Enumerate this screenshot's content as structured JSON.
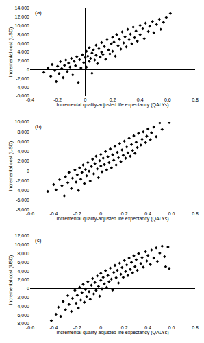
{
  "chart_data": [
    {
      "type": "scatter",
      "title": "(a)",
      "x_label": "Incremental quality-adjusted life expectancy (QALYs)",
      "y_label": "Incremental cost (USD)",
      "color": "#000000",
      "marker": "diamond",
      "grid": false,
      "xlim": [
        -0.4,
        0.8
      ],
      "xticks": [
        -0.4,
        -0.2,
        0,
        0.2,
        0.4,
        0.6,
        0.8
      ],
      "ylim": [
        -6000,
        14000
      ],
      "yticks": [
        {
          "value": -6000,
          "label": "-6,000"
        },
        {
          "value": -4000,
          "label": "-4,000"
        },
        {
          "value": -2000,
          "label": "-2,000"
        },
        0,
        {
          "value": 2000,
          "label": "2,000"
        },
        {
          "value": 4000,
          "label": "4,000"
        },
        {
          "value": 6000,
          "label": "6,000"
        },
        {
          "value": 8000,
          "label": "8,000"
        },
        {
          "value": 10000,
          "label": "10,000"
        },
        {
          "value": 12000,
          "label": "12,000"
        },
        {
          "value": 14000,
          "label": "14,000"
        }
      ],
      "x": [
        -0.3,
        -0.27,
        -0.25,
        -0.24,
        -0.22,
        -0.21,
        -0.2,
        -0.19,
        -0.18,
        -0.17,
        -0.16,
        -0.15,
        -0.14,
        -0.13,
        -0.12,
        -0.11,
        -0.1,
        -0.09,
        -0.08,
        -0.07,
        -0.06,
        -0.05,
        -0.04,
        -0.03,
        -0.02,
        -0.01,
        0.0,
        0.01,
        0.01,
        0.02,
        0.03,
        0.03,
        0.04,
        0.05,
        0.05,
        0.06,
        0.07,
        0.08,
        0.08,
        0.09,
        0.1,
        0.11,
        0.12,
        0.12,
        0.13,
        0.14,
        0.15,
        0.16,
        0.17,
        0.18,
        0.19,
        0.2,
        0.2,
        0.21,
        0.22,
        0.23,
        0.24,
        0.25,
        0.26,
        0.27,
        0.28,
        0.29,
        0.3,
        0.31,
        0.32,
        0.33,
        0.34,
        0.35,
        0.36,
        0.37,
        0.38,
        0.4,
        0.4,
        0.42,
        0.43,
        0.44,
        0.46,
        0.47,
        0.49,
        0.5,
        0.52,
        0.54,
        0.55,
        0.57,
        0.59,
        0.62
      ],
      "values": [
        -600,
        400,
        -1500,
        1200,
        -200,
        -2700,
        800,
        -900,
        1800,
        300,
        -1800,
        1000,
        2200,
        -400,
        1500,
        600,
        2600,
        -1200,
        1900,
        900,
        3000,
        -2900,
        2300,
        400,
        3400,
        1600,
        2800,
        4200,
        600,
        3100,
        1900,
        5000,
        2600,
        3800,
        -800,
        4500,
        2200,
        5600,
        3300,
        1400,
        4800,
        2900,
        6200,
        4000,
        3500,
        5300,
        2400,
        6800,
        4500,
        3600,
        5900,
        7400,
        4200,
        6300,
        3100,
        8000,
        5500,
        6900,
        4700,
        8600,
        6100,
        7500,
        5200,
        9200,
        6800,
        8100,
        5900,
        9700,
        7300,
        8800,
        6500,
        10100,
        8000,
        9300,
        7100,
        10600,
        8700,
        9900,
        11000,
        8400,
        10300,
        11500,
        9200,
        10800,
        11900,
        12800
      ]
    },
    {
      "type": "scatter",
      "title": "(b)",
      "x_label": "Incremental quality-adjusted life expectancy (QALYs)",
      "y_label": "Incremental cost (USD)",
      "color": "#000000",
      "marker": "diamond",
      "grid": false,
      "xlim": [
        -0.6,
        0.8
      ],
      "xticks": [
        -0.6,
        -0.4,
        -0.2,
        0,
        0.2,
        0.4,
        0.6,
        0.8
      ],
      "ylim": [
        -8000,
        10000
      ],
      "yticks": [
        {
          "value": -8000,
          "label": "-8,000"
        },
        {
          "value": -6000,
          "label": "-6,000"
        },
        {
          "value": -4000,
          "label": "-4,000"
        },
        {
          "value": -2000,
          "label": "-2,000"
        },
        0,
        {
          "value": 2000,
          "label": "2,000"
        },
        {
          "value": 4000,
          "label": "4,000"
        },
        {
          "value": 6000,
          "label": "6,000"
        },
        {
          "value": 8000,
          "label": "8,000"
        },
        {
          "value": 10000,
          "label": "10,000"
        }
      ],
      "x": [
        -0.45,
        -0.4,
        -0.38,
        -0.35,
        -0.33,
        -0.31,
        -0.3,
        -0.28,
        -0.27,
        -0.25,
        -0.24,
        -0.22,
        -0.21,
        -0.2,
        -0.19,
        -0.18,
        -0.17,
        -0.16,
        -0.15,
        -0.14,
        -0.13,
        -0.12,
        -0.11,
        -0.1,
        -0.09,
        -0.08,
        -0.07,
        -0.06,
        -0.05,
        -0.04,
        -0.03,
        -0.02,
        -0.01,
        0.0,
        0.0,
        0.01,
        0.02,
        0.03,
        0.04,
        0.05,
        0.06,
        0.07,
        0.08,
        0.09,
        0.1,
        0.11,
        0.12,
        0.13,
        0.14,
        0.15,
        0.16,
        0.17,
        0.18,
        0.19,
        0.2,
        0.21,
        0.22,
        0.23,
        0.24,
        0.25,
        0.26,
        0.27,
        0.28,
        0.29,
        0.3,
        0.31,
        0.32,
        0.34,
        0.35,
        0.36,
        0.38,
        0.39,
        0.4,
        0.42,
        0.43,
        0.45,
        0.47,
        0.5,
        0.52,
        0.58
      ],
      "values": [
        -4200,
        -2800,
        -3900,
        -1800,
        -3000,
        -5100,
        -1200,
        -2400,
        -300,
        -3600,
        -1500,
        200,
        -2300,
        -800,
        -4000,
        600,
        -1700,
        -300,
        1200,
        -2600,
        300,
        -1000,
        1700,
        -100,
        -2100,
        900,
        2400,
        -600,
        1500,
        3000,
        400,
        -1400,
        2100,
        1000,
        3400,
        -200,
        2600,
        1300,
        4000,
        200,
        2900,
        1700,
        4500,
        600,
        3300,
        2200,
        5000,
        1200,
        3800,
        2700,
        5600,
        1900,
        4300,
        3200,
        6100,
        2600,
        4900,
        3700,
        6700,
        3000,
        5400,
        4200,
        7200,
        3600,
        5900,
        4800,
        7700,
        5300,
        6500,
        8000,
        5800,
        7100,
        8600,
        6400,
        7800,
        9000,
        7000,
        9800,
        8500,
        9900
      ]
    },
    {
      "type": "scatter",
      "title": "(c)",
      "x_label": "Incremental quality-adjusted life expectancy (QALYs)",
      "y_label": "Incremental cost (USD)",
      "color": "#000000",
      "marker": "diamond",
      "grid": false,
      "xlim": [
        -0.6,
        0.8
      ],
      "xticks": [
        -0.6,
        -0.4,
        -0.2,
        0,
        0.2,
        0.4,
        0.6,
        0.8
      ],
      "ylim": [
        -8000,
        12000
      ],
      "yticks": [
        {
          "value": -8000,
          "label": "-8,000"
        },
        {
          "value": -6000,
          "label": "-6,000"
        },
        {
          "value": -4000,
          "label": "-4,000"
        },
        {
          "value": -2000,
          "label": "-2,000"
        },
        0,
        {
          "value": 2000,
          "label": "2,000"
        },
        {
          "value": 4000,
          "label": "4,000"
        },
        {
          "value": 6000,
          "label": "6,000"
        },
        {
          "value": 8000,
          "label": "8,000"
        },
        {
          "value": 10000,
          "label": "10,000"
        },
        {
          "value": 12000,
          "label": "12,000"
        }
      ],
      "x": [
        -0.42,
        -0.38,
        -0.36,
        -0.34,
        -0.32,
        -0.3,
        -0.28,
        -0.27,
        -0.25,
        -0.24,
        -0.22,
        -0.21,
        -0.2,
        -0.19,
        -0.18,
        -0.17,
        -0.16,
        -0.15,
        -0.14,
        -0.13,
        -0.12,
        -0.11,
        -0.1,
        -0.09,
        -0.08,
        -0.07,
        -0.06,
        -0.05,
        -0.04,
        -0.03,
        -0.02,
        -0.01,
        0.0,
        0.0,
        0.01,
        0.02,
        0.03,
        0.04,
        0.05,
        0.06,
        0.07,
        0.08,
        0.09,
        0.1,
        0.11,
        0.12,
        0.13,
        0.14,
        0.15,
        0.16,
        0.17,
        0.18,
        0.19,
        0.2,
        0.21,
        0.22,
        0.23,
        0.24,
        0.25,
        0.26,
        0.27,
        0.28,
        0.29,
        0.3,
        0.31,
        0.32,
        0.34,
        0.35,
        0.36,
        0.38,
        0.39,
        0.4,
        0.42,
        0.43,
        0.45,
        0.47,
        0.48,
        0.5,
        0.52,
        0.54,
        0.55,
        0.57,
        0.58
      ],
      "values": [
        -7300,
        -5800,
        -4200,
        -6300,
        -2900,
        -4800,
        -1600,
        -3600,
        -5200,
        -2200,
        -400,
        -3300,
        -1500,
        -4400,
        300,
        -2600,
        -900,
        1000,
        -3100,
        -200,
        -1800,
        1600,
        -700,
        -2400,
        800,
        2300,
        -1200,
        1400,
        -400,
        2900,
        500,
        -1700,
        1900,
        3500,
        -100,
        2600,
        1100,
        4100,
        300,
        3000,
        1600,
        4700,
        2200,
        -300,
        3700,
        5300,
        2500,
        4200,
        1300,
        5800,
        3300,
        4800,
        2600,
        6400,
        3900,
        5400,
        3000,
        7000,
        4400,
        6000,
        3600,
        7500,
        5000,
        6600,
        4200,
        8000,
        5700,
        7100,
        4900,
        8400,
        6300,
        7600,
        5500,
        8800,
        7000,
        9300,
        6200,
        8100,
        9700,
        7300,
        5000,
        9500,
        4600
      ]
    }
  ]
}
